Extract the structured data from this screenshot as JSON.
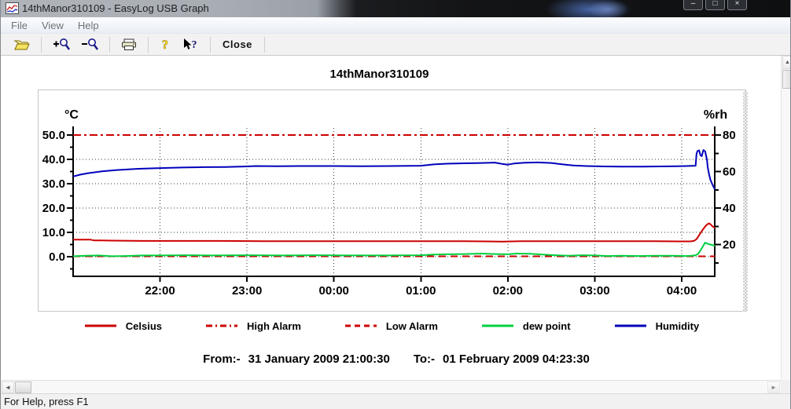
{
  "window": {
    "title": "14thManor310109 - EasyLog USB Graph",
    "controls": {
      "min": "–",
      "max": "□",
      "close": "×"
    }
  },
  "menu": {
    "items": [
      "File",
      "View",
      "Help"
    ]
  },
  "toolbar": {
    "close_label": "Close",
    "icons": [
      "open-file",
      "zoom-in",
      "zoom-out",
      "print",
      "help",
      "context-help"
    ]
  },
  "chart_data": {
    "type": "line",
    "title": "14thManor310109",
    "x_axis": {
      "unit": "time",
      "start": "31 January 2009 21:00:30",
      "end": "01 February 2009 04:23:30",
      "range_hours": [
        0,
        7.383
      ],
      "ticks": [
        {
          "h": 1,
          "label": "22:00"
        },
        {
          "h": 2,
          "label": "23:00"
        },
        {
          "h": 3,
          "label": "00:00"
        },
        {
          "h": 4,
          "label": "01:00"
        },
        {
          "h": 5,
          "label": "02:00"
        },
        {
          "h": 6,
          "label": "03:00"
        },
        {
          "h": 7,
          "label": "04:00"
        }
      ]
    },
    "y_left": {
      "label": "°C",
      "range": [
        -8,
        53.5
      ],
      "ticks": [
        {
          "v": 50,
          "label": "50.0"
        },
        {
          "v": 40,
          "label": "40.0"
        },
        {
          "v": 30,
          "label": "30.0"
        },
        {
          "v": 20,
          "label": "20.0"
        },
        {
          "v": 10,
          "label": "10.0"
        },
        {
          "v": 0,
          "label": "0.0"
        }
      ],
      "minor_ticks": [
        45,
        35,
        25,
        15,
        5,
        -5
      ]
    },
    "y_right": {
      "label": "%rh",
      "range": [
        2,
        84
      ],
      "ticks": [
        {
          "v": 80,
          "label": "80"
        },
        {
          "v": 60,
          "label": "60"
        },
        {
          "v": 40,
          "label": "40"
        },
        {
          "v": 20,
          "label": "20"
        }
      ],
      "minor_ticks": [
        70,
        50,
        30,
        10
      ]
    },
    "gridlines": {
      "horizontal_celsius": [
        40,
        30,
        20,
        10,
        0
      ],
      "vertical_hours": [
        1,
        2,
        3,
        4,
        5,
        6,
        7
      ]
    },
    "series": [
      {
        "name": "Celsius",
        "axis": "left",
        "color": "#cc0000",
        "style": "solid",
        "points": [
          [
            0,
            7
          ],
          [
            0.2,
            7
          ],
          [
            0.24,
            6.7
          ],
          [
            0.45,
            6.6
          ],
          [
            0.8,
            6.5
          ],
          [
            1.2,
            6.5
          ],
          [
            1.7,
            6.5
          ],
          [
            2.2,
            6.4
          ],
          [
            2.8,
            6.4
          ],
          [
            3.4,
            6.4
          ],
          [
            4,
            6.4
          ],
          [
            4.5,
            6.4
          ],
          [
            4.75,
            6.3
          ],
          [
            4.95,
            6.2
          ],
          [
            5.05,
            6.3
          ],
          [
            5.15,
            6.4
          ],
          [
            5.7,
            6.4
          ],
          [
            6.2,
            6.4
          ],
          [
            6.7,
            6.4
          ],
          [
            6.95,
            6.3
          ],
          [
            7.1,
            6.3
          ],
          [
            7.14,
            6.5
          ],
          [
            7.17,
            7.2
          ],
          [
            7.2,
            8.8
          ],
          [
            7.24,
            11
          ],
          [
            7.28,
            12.8
          ],
          [
            7.31,
            13.7
          ],
          [
            7.33,
            13.4
          ],
          [
            7.35,
            12.6
          ],
          [
            7.37,
            12.1
          ],
          [
            7.383,
            11.8
          ]
        ]
      },
      {
        "name": "High Alarm",
        "axis": "left",
        "color": "#cc0000",
        "style": "dashdot",
        "points": [
          [
            0,
            50
          ],
          [
            7.383,
            50
          ]
        ]
      },
      {
        "name": "Low Alarm",
        "axis": "left",
        "color": "#cc0000",
        "style": "dash",
        "points": [
          [
            0,
            0.15
          ],
          [
            7.383,
            0.15
          ]
        ]
      },
      {
        "name": "dew point",
        "axis": "left",
        "color": "#00d040",
        "style": "solid",
        "points": [
          [
            0,
            0.2
          ],
          [
            0.15,
            0.4
          ],
          [
            0.3,
            0.5
          ],
          [
            0.45,
            0.2
          ],
          [
            0.6,
            0.3
          ],
          [
            0.8,
            0.5
          ],
          [
            1,
            0.5
          ],
          [
            1.3,
            0.6
          ],
          [
            1.6,
            0.5
          ],
          [
            2,
            0.6
          ],
          [
            2.4,
            0.5
          ],
          [
            2.8,
            0.6
          ],
          [
            3.2,
            0.5
          ],
          [
            3.6,
            0.5
          ],
          [
            4,
            0.6
          ],
          [
            4.15,
            0.9
          ],
          [
            4.3,
            1
          ],
          [
            4.5,
            1.1
          ],
          [
            4.7,
            1.3
          ],
          [
            4.85,
            1.1
          ],
          [
            5,
            1
          ],
          [
            5.1,
            1.3
          ],
          [
            5.25,
            1.2
          ],
          [
            5.4,
            0.9
          ],
          [
            5.55,
            0.6
          ],
          [
            5.7,
            0.4
          ],
          [
            5.85,
            0.6
          ],
          [
            6,
            0.5
          ],
          [
            6.15,
            0.3
          ],
          [
            6.3,
            0.4
          ],
          [
            6.5,
            0.3
          ],
          [
            6.7,
            0.4
          ],
          [
            6.9,
            0.4
          ],
          [
            7.05,
            0.3
          ],
          [
            7.12,
            0.4
          ],
          [
            7.16,
            0.6
          ],
          [
            7.19,
            1.2
          ],
          [
            7.22,
            2.8
          ],
          [
            7.25,
            4.6
          ],
          [
            7.27,
            5.8
          ],
          [
            7.3,
            5.3
          ],
          [
            7.33,
            5
          ],
          [
            7.36,
            4.7
          ],
          [
            7.383,
            4.5
          ]
        ]
      },
      {
        "name": "Humidity",
        "axis": "right",
        "color": "#0000bb",
        "style": "solid",
        "points": [
          [
            0,
            57.3
          ],
          [
            0.08,
            58.3
          ],
          [
            0.17,
            59.1
          ],
          [
            0.33,
            60.1
          ],
          [
            0.5,
            60.8
          ],
          [
            0.75,
            61.5
          ],
          [
            1,
            61.9
          ],
          [
            1.25,
            62.2
          ],
          [
            1.5,
            62.4
          ],
          [
            1.75,
            62.5
          ],
          [
            2,
            62.8
          ],
          [
            2.1,
            63
          ],
          [
            2.35,
            62.9
          ],
          [
            2.6,
            63
          ],
          [
            3,
            63
          ],
          [
            3.3,
            62.9
          ],
          [
            3.65,
            63
          ],
          [
            4,
            63.2
          ],
          [
            4.15,
            63.9
          ],
          [
            4.3,
            64.3
          ],
          [
            4.5,
            64.5
          ],
          [
            4.7,
            64.7
          ],
          [
            4.85,
            64.9
          ],
          [
            4.93,
            64.2
          ],
          [
            5,
            63.8
          ],
          [
            5.07,
            64.4
          ],
          [
            5.2,
            64.8
          ],
          [
            5.35,
            65
          ],
          [
            5.5,
            64.7
          ],
          [
            5.62,
            64
          ],
          [
            5.75,
            63.3
          ],
          [
            5.9,
            63
          ],
          [
            6.1,
            62.8
          ],
          [
            6.3,
            62.7
          ],
          [
            6.55,
            62.7
          ],
          [
            6.75,
            62.8
          ],
          [
            6.95,
            62.9
          ],
          [
            7.05,
            63
          ],
          [
            7.12,
            63.1
          ],
          [
            7.16,
            63.2
          ],
          [
            7.17,
            69.5
          ],
          [
            7.18,
            71.2
          ],
          [
            7.2,
            71.6
          ],
          [
            7.215,
            69
          ],
          [
            7.23,
            68.4
          ],
          [
            7.25,
            71.8
          ],
          [
            7.27,
            71
          ],
          [
            7.29,
            66.5
          ],
          [
            7.3,
            62
          ],
          [
            7.315,
            58.5
          ],
          [
            7.33,
            55.5
          ],
          [
            7.35,
            53.2
          ],
          [
            7.365,
            51.8
          ],
          [
            7.383,
            50.2
          ]
        ]
      }
    ],
    "legend_position": "bottom"
  },
  "footer": {
    "from_label": "From:-",
    "from_value": "31 January 2009 21:00:30",
    "to_label": "To:-",
    "to_value": "01 February 2009 04:23:30"
  },
  "statusbar": {
    "text": "For Help, press F1"
  },
  "colors": {
    "celsius": "#cc0000",
    "alarm": "#cc0000",
    "dew_point": "#00d040",
    "humidity": "#0000bb"
  }
}
